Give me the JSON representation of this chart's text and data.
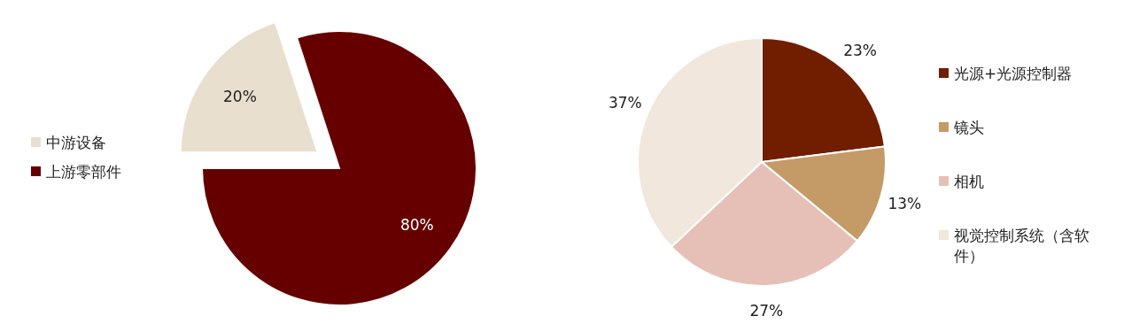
{
  "chart_data": [
    {
      "type": "pie",
      "categories": [
        "中游设备",
        "上游零部件"
      ],
      "values": [
        20,
        80
      ],
      "colors": [
        "#e9dfcf",
        "#660000"
      ],
      "value_labels": [
        "20%",
        "80%"
      ],
      "legend": "left"
    },
    {
      "type": "pie",
      "categories": [
        "光源+光源控制器",
        "镜头",
        "相机",
        "视觉控制系统（含软件）"
      ],
      "values": [
        23,
        13,
        27,
        37
      ],
      "colors": [
        "#701d00",
        "#c49b66",
        "#e6c0b6",
        "#f1e7dd"
      ],
      "value_labels": [
        "23%",
        "13%",
        "27%",
        "37%"
      ],
      "legend": "right"
    }
  ]
}
